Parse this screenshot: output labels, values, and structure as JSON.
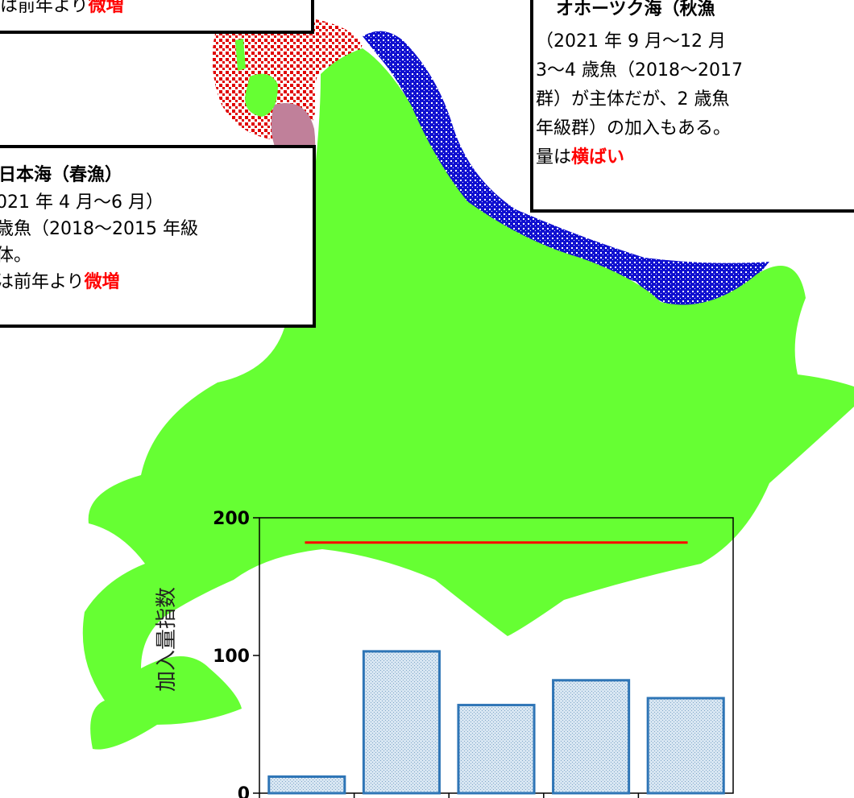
{
  "top_left_box": {
    "lines": [
      {
        "text": "は前年より",
        "highlight": "微増"
      }
    ]
  },
  "okhotsk_box": {
    "title": "オホーツク海（秋漁",
    "lines": [
      {
        "text": "（2021 年 9 月～12 月"
      },
      {
        "text": "3～4 歳魚（2018～2017"
      },
      {
        "text": "群）が主体だが、2 歳魚"
      },
      {
        "text": "年級群）の加入もある。"
      },
      {
        "text": "量は",
        "highlight": "横ばい"
      }
    ]
  },
  "japan_sea_box": {
    "title": "日本海（春漁）",
    "lines": [
      {
        "text": "021 年 4 月～6 月）"
      },
      {
        "text": "歳魚（2018～2015 年級"
      },
      {
        "text": "体。"
      },
      {
        "text": "は前年より",
        "highlight": "微増"
      }
    ]
  },
  "highlight_color": "#ff0000",
  "chart_data": {
    "type": "bar",
    "y_label": "加入量指数",
    "categories": [
      null,
      null,
      null,
      null,
      null
    ],
    "values": [
      12,
      103,
      64,
      82,
      69
    ],
    "color": "#2e75b6",
    "ylim": [
      0,
      200
    ],
    "yticks": [
      0,
      100,
      200
    ],
    "reference_line": {
      "value": 182,
      "color": "#ff0000"
    }
  }
}
